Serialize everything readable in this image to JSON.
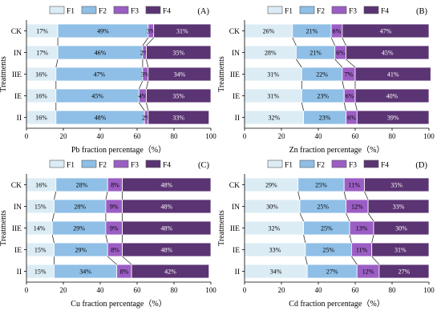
{
  "colors": {
    "F1": "#dcecf5",
    "F2": "#8fbfe6",
    "F3": "#9b5ec4",
    "F4": "#5b3473",
    "bar_edge": "#ffffff",
    "axis": "#000000",
    "connector": "#333333"
  },
  "chart_data": [
    {
      "type": "bar",
      "orientation": "horizontal",
      "stacked": true,
      "panel_label": "(A)",
      "xlabel": "Pb fraction percentage（%）",
      "ylabel": "Treatments",
      "xlim": [
        0,
        100
      ],
      "xticks": [
        "0",
        "20",
        "40",
        "60",
        "80",
        "100"
      ],
      "legend": [
        "F1",
        "F2",
        "F3",
        "F4"
      ],
      "legend_position": "top",
      "categories": [
        "CK",
        "IN",
        "IIE",
        "IE",
        "II"
      ],
      "series": [
        {
          "name": "F1",
          "values": [
            17,
            17,
            16,
            16,
            16
          ],
          "labels": [
            "17%",
            "17%",
            "16%",
            "16%",
            "16%"
          ]
        },
        {
          "name": "F2",
          "values": [
            49,
            46,
            47,
            45,
            48
          ],
          "labels": [
            "49%",
            "46%",
            "47%",
            "45%",
            "48%"
          ]
        },
        {
          "name": "F3",
          "values": [
            3,
            2,
            3,
            4,
            2
          ],
          "labels": [
            "3%",
            "2%",
            "3%",
            "4%",
            "2%"
          ]
        },
        {
          "name": "F4",
          "values": [
            31,
            35,
            34,
            35,
            33
          ],
          "labels": [
            "31%",
            "35%",
            "34%",
            "35%",
            "33%"
          ]
        }
      ]
    },
    {
      "type": "bar",
      "orientation": "horizontal",
      "stacked": true,
      "panel_label": "(B)",
      "xlabel": "Zn fraction percentage（%）",
      "ylabel": "Treatments",
      "xlim": [
        0,
        100
      ],
      "xticks": [
        "0",
        "20",
        "40",
        "60",
        "80",
        "100"
      ],
      "legend": [
        "F1",
        "F2",
        "F3",
        "F4"
      ],
      "legend_position": "top",
      "categories": [
        "CK",
        "IN",
        "IIE",
        "IE",
        "II"
      ],
      "series": [
        {
          "name": "F1",
          "values": [
            26,
            28,
            31,
            31,
            32
          ],
          "labels": [
            "26%",
            "28%",
            "31%",
            "31%",
            "32%"
          ]
        },
        {
          "name": "F2",
          "values": [
            21,
            21,
            22,
            23,
            23
          ],
          "labels": [
            "21%",
            "21%",
            "22%",
            "23%",
            "23%"
          ]
        },
        {
          "name": "F3",
          "values": [
            6,
            6,
            7,
            6,
            6
          ],
          "labels": [
            "6%",
            "6%",
            "7%",
            "6%",
            "6%"
          ]
        },
        {
          "name": "F4",
          "values": [
            47,
            45,
            41,
            40,
            39
          ],
          "labels": [
            "47%",
            "45%",
            "41%",
            "40%",
            "39%"
          ]
        }
      ]
    },
    {
      "type": "bar",
      "orientation": "horizontal",
      "stacked": true,
      "panel_label": "(C)",
      "xlabel": "Cu fraction percentage（%）",
      "ylabel": "Treatments",
      "xlim": [
        0,
        100
      ],
      "xticks": [
        "0",
        "20",
        "40",
        "60",
        "80",
        "100"
      ],
      "legend": [
        "F1",
        "F2",
        "F3",
        "F4"
      ],
      "legend_position": "top",
      "categories": [
        "CK",
        "IN",
        "IIE",
        "IE",
        "II"
      ],
      "series": [
        {
          "name": "F1",
          "values": [
            16,
            15,
            14,
            15,
            15
          ],
          "labels": [
            "16%",
            "15%",
            "14%",
            "15%",
            "15%"
          ]
        },
        {
          "name": "F2",
          "values": [
            28,
            28,
            29,
            29,
            34
          ],
          "labels": [
            "28%",
            "28%",
            "29%",
            "29%",
            "34%"
          ]
        },
        {
          "name": "F3",
          "values": [
            8,
            9,
            9,
            8,
            8
          ],
          "labels": [
            "8%",
            "9%",
            "9%",
            "8%",
            "8%"
          ]
        },
        {
          "name": "F4",
          "values": [
            48,
            48,
            48,
            48,
            42
          ],
          "labels": [
            "48%",
            "48%",
            "48%",
            "48%",
            "42%"
          ]
        }
      ]
    },
    {
      "type": "bar",
      "orientation": "horizontal",
      "stacked": true,
      "panel_label": "(D)",
      "xlabel": "Cd fraction percentage（%）",
      "ylabel": "Treatments",
      "xlim": [
        0,
        100
      ],
      "xticks": [
        "0",
        "20",
        "40",
        "60",
        "80",
        "100"
      ],
      "legend": [
        "F1",
        "F2",
        "F3",
        "F4"
      ],
      "legend_position": "top",
      "categories": [
        "CK",
        "IN",
        "IIE",
        "IE",
        "II"
      ],
      "series": [
        {
          "name": "F1",
          "values": [
            29,
            30,
            32,
            33,
            34
          ],
          "labels": [
            "29%",
            "30%",
            "32%",
            "33%",
            "34%"
          ]
        },
        {
          "name": "F2",
          "values": [
            25,
            25,
            25,
            25,
            27
          ],
          "labels": [
            "25%",
            "25%",
            "25%",
            "25%",
            "27%"
          ]
        },
        {
          "name": "F3",
          "values": [
            11,
            12,
            13,
            11,
            12
          ],
          "labels": [
            "11%",
            "12%",
            "13%",
            "11%",
            "12%"
          ]
        },
        {
          "name": "F4",
          "values": [
            35,
            33,
            30,
            31,
            27
          ],
          "labels": [
            "35%",
            "33%",
            "30%",
            "31%",
            "27%"
          ]
        }
      ]
    }
  ]
}
